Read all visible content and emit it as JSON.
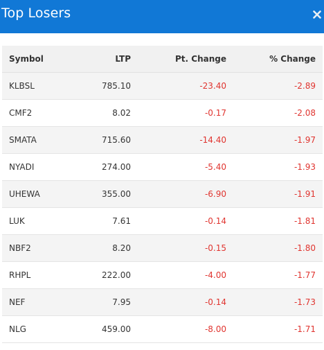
{
  "header": {
    "title": "Top Losers",
    "close_icon": "close-icon"
  },
  "table": {
    "columns": {
      "symbol": "Symbol",
      "ltp": "LTP",
      "pt_change": "Pt. Change",
      "pct_change": "% Change"
    },
    "rows": [
      {
        "symbol": "KLBSL",
        "ltp": "785.10",
        "pt_change": "-23.40",
        "pct_change": "-2.89"
      },
      {
        "symbol": "CMF2",
        "ltp": "8.02",
        "pt_change": "-0.17",
        "pct_change": "-2.08"
      },
      {
        "symbol": "SMATA",
        "ltp": "715.60",
        "pt_change": "-14.40",
        "pct_change": "-1.97"
      },
      {
        "symbol": "NYADI",
        "ltp": "274.00",
        "pt_change": "-5.40",
        "pct_change": "-1.93"
      },
      {
        "symbol": "UHEWA",
        "ltp": "355.00",
        "pt_change": "-6.90",
        "pct_change": "-1.91"
      },
      {
        "symbol": "LUK",
        "ltp": "7.61",
        "pt_change": "-0.14",
        "pct_change": "-1.81"
      },
      {
        "symbol": "NBF2",
        "ltp": "8.20",
        "pt_change": "-0.15",
        "pct_change": "-1.80"
      },
      {
        "symbol": "RHPL",
        "ltp": "222.00",
        "pt_change": "-4.00",
        "pct_change": "-1.77"
      },
      {
        "symbol": "NEF",
        "ltp": "7.95",
        "pt_change": "-0.14",
        "pct_change": "-1.73"
      },
      {
        "symbol": "NLG",
        "ltp": "459.00",
        "pt_change": "-8.00",
        "pct_change": "-1.71"
      }
    ]
  },
  "colors": {
    "header_bg": "#1178d6",
    "negative": "#e0342f",
    "row_stripe": "#f4f4f4"
  }
}
